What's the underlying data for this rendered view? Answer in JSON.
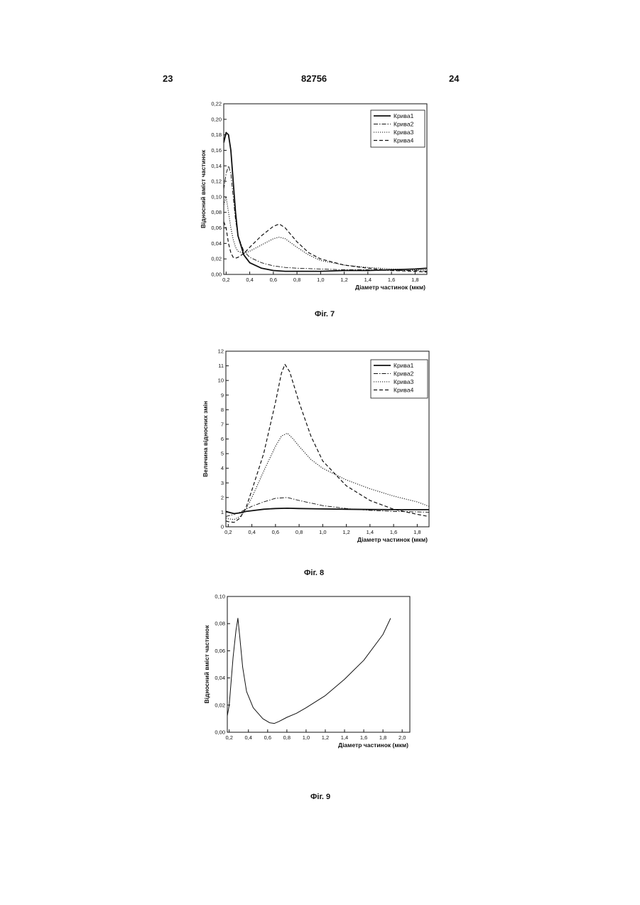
{
  "page": {
    "left_number": "23",
    "center_number": "82756",
    "right_number": "24"
  },
  "captions": {
    "fig7": "Фіг. 7",
    "fig8": "Фіг. 8",
    "fig9": "Фіг. 9"
  },
  "chart_data": [
    {
      "type": "line",
      "caption": "Фіг. 7",
      "xlabel": "Діаметр частинок (мкм)",
      "ylabel": "Відносний вміст частинок",
      "xlim": [
        0.18,
        1.9
      ],
      "ylim": [
        0,
        0.22
      ],
      "xticks": [
        "0,2",
        "0,4",
        "0,6",
        "0,8",
        "1,0",
        "1,2",
        "1,4",
        "1,6",
        "1,8"
      ],
      "yticks": [
        "0,00",
        "0,02",
        "0,04",
        "0,06",
        "0,08",
        "0,10",
        "0,12",
        "0,14",
        "0,16",
        "0,18",
        "0,20",
        "0,22"
      ],
      "legend_position": "top-right",
      "series": [
        {
          "name": "Крива1",
          "style": "solid-bold",
          "x": [
            0.18,
            0.2,
            0.22,
            0.24,
            0.26,
            0.28,
            0.3,
            0.35,
            0.4,
            0.5,
            0.6,
            0.7,
            0.8,
            1.0,
            1.2,
            1.4,
            1.6,
            1.8,
            1.9
          ],
          "y": [
            0.17,
            0.183,
            0.18,
            0.16,
            0.12,
            0.08,
            0.05,
            0.025,
            0.015,
            0.008,
            0.005,
            0.004,
            0.004,
            0.004,
            0.005,
            0.005,
            0.006,
            0.007,
            0.008
          ]
        },
        {
          "name": "Крива2",
          "style": "dashdot",
          "x": [
            0.18,
            0.2,
            0.22,
            0.24,
            0.26,
            0.28,
            0.3,
            0.35,
            0.4,
            0.5,
            0.6,
            0.7,
            0.8,
            1.0,
            1.2,
            1.4,
            1.6,
            1.8,
            1.9
          ],
          "y": [
            0.11,
            0.13,
            0.14,
            0.13,
            0.1,
            0.07,
            0.05,
            0.03,
            0.022,
            0.015,
            0.011,
            0.009,
            0.008,
            0.007,
            0.006,
            0.006,
            0.005,
            0.005,
            0.004
          ]
        },
        {
          "name": "Крива3",
          "style": "dotted",
          "x": [
            0.18,
            0.2,
            0.22,
            0.24,
            0.26,
            0.28,
            0.3,
            0.35,
            0.4,
            0.5,
            0.6,
            0.65,
            0.7,
            0.8,
            0.9,
            1.0,
            1.2,
            1.4,
            1.6,
            1.8,
            1.9
          ],
          "y": [
            0.09,
            0.1,
            0.08,
            0.06,
            0.045,
            0.035,
            0.03,
            0.027,
            0.03,
            0.038,
            0.046,
            0.048,
            0.046,
            0.035,
            0.025,
            0.018,
            0.012,
            0.009,
            0.007,
            0.006,
            0.006
          ]
        },
        {
          "name": "Крива4",
          "style": "dashed",
          "x": [
            0.18,
            0.2,
            0.22,
            0.24,
            0.26,
            0.28,
            0.3,
            0.35,
            0.4,
            0.5,
            0.6,
            0.65,
            0.7,
            0.8,
            0.9,
            1.0,
            1.2,
            1.4,
            1.6,
            1.8,
            1.9
          ],
          "y": [
            0.068,
            0.06,
            0.04,
            0.028,
            0.022,
            0.021,
            0.022,
            0.027,
            0.035,
            0.05,
            0.062,
            0.065,
            0.06,
            0.042,
            0.028,
            0.02,
            0.012,
            0.008,
            0.005,
            0.004,
            0.003
          ]
        }
      ]
    },
    {
      "type": "line",
      "caption": "Фіг. 8",
      "xlabel": "Діаметр частинок (мкм)",
      "ylabel": "Величина відносних змін",
      "xlim": [
        0.18,
        1.9
      ],
      "ylim": [
        0,
        12
      ],
      "xticks": [
        "0,2",
        "0,4",
        "0,6",
        "0,8",
        "1,0",
        "1,2",
        "1,4",
        "1,6",
        "1,8"
      ],
      "yticks": [
        "0",
        "1",
        "2",
        "3",
        "4",
        "5",
        "6",
        "7",
        "8",
        "9",
        "10",
        "11",
        "12"
      ],
      "legend_position": "top-right",
      "series": [
        {
          "name": "Крива1",
          "style": "solid-bold",
          "x": [
            0.18,
            0.2,
            0.25,
            0.3,
            0.35,
            0.4,
            0.5,
            0.6,
            0.7,
            0.8,
            1.0,
            1.2,
            1.4,
            1.6,
            1.8,
            1.9
          ],
          "y": [
            1.05,
            1.0,
            0.9,
            0.95,
            1.05,
            1.1,
            1.2,
            1.25,
            1.27,
            1.25,
            1.22,
            1.2,
            1.18,
            1.17,
            1.17,
            1.17
          ]
        },
        {
          "name": "Крива2",
          "style": "dashdot",
          "x": [
            0.18,
            0.2,
            0.25,
            0.3,
            0.35,
            0.4,
            0.5,
            0.6,
            0.7,
            0.8,
            1.0,
            1.2,
            1.4,
            1.6,
            1.8,
            1.9
          ],
          "y": [
            0.7,
            0.75,
            0.85,
            1.0,
            1.2,
            1.4,
            1.7,
            1.95,
            2.0,
            1.8,
            1.45,
            1.25,
            1.12,
            1.05,
            1.02,
            1.0
          ]
        },
        {
          "name": "Крива3",
          "style": "dotted",
          "x": [
            0.18,
            0.2,
            0.25,
            0.3,
            0.35,
            0.4,
            0.5,
            0.6,
            0.65,
            0.7,
            0.75,
            0.8,
            0.9,
            1.0,
            1.2,
            1.4,
            1.6,
            1.8,
            1.9
          ],
          "y": [
            0.6,
            0.55,
            0.5,
            0.7,
            1.2,
            2.0,
            3.8,
            5.5,
            6.2,
            6.4,
            6.0,
            5.5,
            4.6,
            4.0,
            3.2,
            2.6,
            2.1,
            1.7,
            1.4
          ]
        },
        {
          "name": "Крива4",
          "style": "dashed",
          "x": [
            0.18,
            0.2,
            0.25,
            0.3,
            0.35,
            0.4,
            0.5,
            0.6,
            0.65,
            0.68,
            0.72,
            0.8,
            0.9,
            1.0,
            1.2,
            1.4,
            1.6,
            1.8,
            1.9
          ],
          "y": [
            0.4,
            0.35,
            0.3,
            0.6,
            1.3,
            2.5,
            5.0,
            8.5,
            10.5,
            11.1,
            10.6,
            8.5,
            6.2,
            4.5,
            2.8,
            1.8,
            1.2,
            0.85,
            0.7
          ]
        }
      ]
    },
    {
      "type": "line",
      "caption": "Фіг. 9",
      "xlabel": "Діаметр частинок (мкм)",
      "ylabel": "Відносний вміст частинок",
      "xlim": [
        0.18,
        2.08
      ],
      "ylim": [
        0,
        0.1
      ],
      "xticks": [
        "0,2",
        "0,4",
        "0,6",
        "0,8",
        "1,0",
        "1,2",
        "1,4",
        "1,6",
        "1,8",
        "2,0"
      ],
      "yticks": [
        "0,00",
        "0,02",
        "0,04",
        "0,06",
        "0,08",
        "0,10"
      ],
      "series": [
        {
          "x": [
            0.18,
            0.2,
            0.24,
            0.27,
            0.29,
            0.31,
            0.34,
            0.38,
            0.45,
            0.55,
            0.62,
            0.67,
            0.72,
            0.8,
            0.9,
            1.0,
            1.2,
            1.4,
            1.6,
            1.8,
            1.88
          ],
          "y": [
            0.012,
            0.02,
            0.055,
            0.075,
            0.084,
            0.07,
            0.048,
            0.03,
            0.018,
            0.01,
            0.007,
            0.0065,
            0.008,
            0.011,
            0.014,
            0.018,
            0.027,
            0.039,
            0.053,
            0.072,
            0.084
          ]
        }
      ]
    }
  ]
}
